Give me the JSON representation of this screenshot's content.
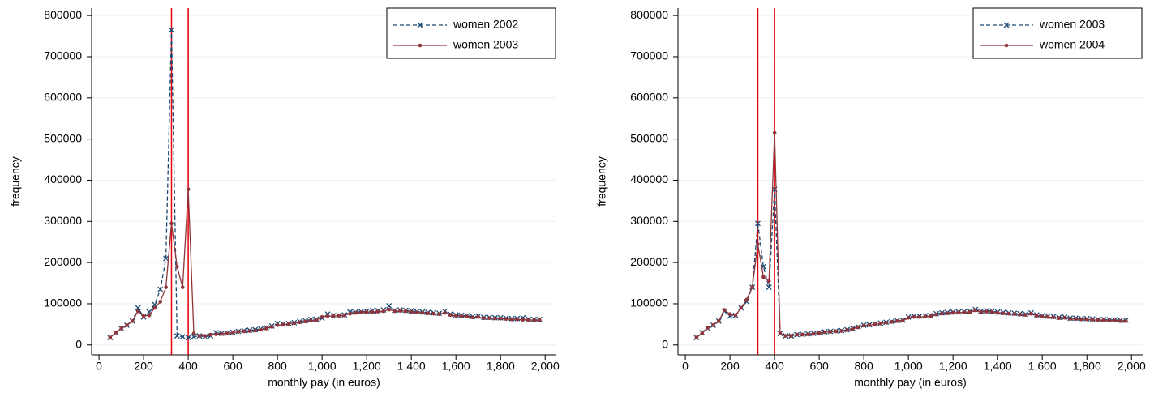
{
  "chart_data": [
    {
      "type": "line",
      "x": [
        50,
        75,
        100,
        125,
        150,
        175,
        200,
        225,
        250,
        275,
        300,
        325,
        350,
        375,
        400,
        425,
        450,
        475,
        500,
        525,
        550,
        575,
        600,
        625,
        650,
        675,
        700,
        725,
        750,
        775,
        800,
        825,
        850,
        875,
        900,
        925,
        950,
        975,
        1000,
        1025,
        1050,
        1075,
        1100,
        1125,
        1150,
        1175,
        1200,
        1225,
        1250,
        1275,
        1300,
        1325,
        1350,
        1375,
        1400,
        1425,
        1450,
        1475,
        1500,
        1525,
        1550,
        1575,
        1600,
        1625,
        1650,
        1675,
        1700,
        1725,
        1750,
        1775,
        1800,
        1825,
        1850,
        1875,
        1900,
        1925,
        1950,
        1975
      ],
      "series": [
        {
          "name": "women 2002",
          "color": "#1a476f",
          "style": "dashed",
          "marker": "x",
          "values": [
            18000,
            30000,
            40000,
            48000,
            58000,
            90000,
            68000,
            80000,
            98000,
            135000,
            210000,
            765000,
            22000,
            20000,
            18000,
            20000,
            22000,
            20000,
            22000,
            30000,
            28000,
            29000,
            31000,
            33000,
            35000,
            36000,
            37000,
            39000,
            42000,
            46000,
            52000,
            51000,
            52000,
            54000,
            57000,
            59000,
            62000,
            63000,
            65000,
            75000,
            71000,
            72000,
            73000,
            80000,
            80000,
            81000,
            82000,
            83000,
            83000,
            85000,
            95000,
            84000,
            85000,
            84000,
            83000,
            81000,
            80000,
            79000,
            78000,
            77000,
            82000,
            75000,
            73000,
            72000,
            71000,
            69000,
            70000,
            67000,
            67000,
            66000,
            66000,
            65000,
            64000,
            64000,
            66000,
            63000,
            62000,
            62000
          ]
        },
        {
          "name": "women 2003",
          "color": "#90353b",
          "style": "solid",
          "marker": "o",
          "values": [
            18000,
            30000,
            40000,
            48000,
            58000,
            82000,
            70000,
            72000,
            90000,
            105000,
            140000,
            295000,
            190000,
            140000,
            378000,
            28000,
            22000,
            22000,
            25000,
            26000,
            27000,
            28000,
            30000,
            32000,
            33000,
            34000,
            35000,
            37000,
            40000,
            44000,
            48000,
            49000,
            51000,
            53000,
            55000,
            57000,
            59000,
            60000,
            68000,
            70000,
            70000,
            71000,
            72000,
            76000,
            78000,
            79000,
            80000,
            80000,
            81000,
            82000,
            86000,
            82000,
            83000,
            82000,
            80000,
            79000,
            78000,
            77000,
            76000,
            75000,
            78000,
            73000,
            71000,
            70000,
            69000,
            67000,
            68000,
            65000,
            65000,
            64000,
            64000,
            63000,
            62000,
            62000,
            61000,
            61000,
            60000,
            60000
          ]
        }
      ],
      "vlines": [
        325,
        400
      ],
      "vline_color": "#e8000b",
      "xlim": [
        -33,
        2050
      ],
      "xticks": [
        0,
        200,
        400,
        600,
        800,
        {
          "value": 1000,
          "label": "1,000"
        },
        {
          "value": 1200,
          "label": "1,200"
        },
        {
          "value": 1400,
          "label": "1,400"
        },
        {
          "value": 1600,
          "label": "1,600"
        },
        {
          "value": 1800,
          "label": "1,800"
        },
        {
          "value": 2000,
          "label": "2,000"
        }
      ],
      "ylim": [
        -24000,
        818000
      ],
      "yticks": [
        0,
        100000,
        200000,
        300000,
        400000,
        500000,
        600000,
        700000,
        800000
      ],
      "xlabel": "monthly pay (in euros)",
      "ylabel": "frequency",
      "grid": true,
      "legend": "top-right"
    },
    {
      "type": "line",
      "x": [
        50,
        75,
        100,
        125,
        150,
        175,
        200,
        225,
        250,
        275,
        300,
        325,
        350,
        375,
        400,
        425,
        450,
        475,
        500,
        525,
        550,
        575,
        600,
        625,
        650,
        675,
        700,
        725,
        750,
        775,
        800,
        825,
        850,
        875,
        900,
        925,
        950,
        975,
        1000,
        1025,
        1050,
        1075,
        1100,
        1125,
        1150,
        1175,
        1200,
        1225,
        1250,
        1275,
        1300,
        1325,
        1350,
        1375,
        1400,
        1425,
        1450,
        1475,
        1500,
        1525,
        1550,
        1575,
        1600,
        1625,
        1650,
        1675,
        1700,
        1725,
        1750,
        1775,
        1800,
        1825,
        1850,
        1875,
        1900,
        1925,
        1950,
        1975
      ],
      "series": [
        {
          "name": "women 2003",
          "color": "#1a476f",
          "style": "dashed",
          "marker": "x",
          "values": [
            18000,
            30000,
            40000,
            48000,
            58000,
            82000,
            70000,
            72000,
            90000,
            105000,
            140000,
            295000,
            190000,
            140000,
            378000,
            28000,
            22000,
            22000,
            25000,
            26000,
            27000,
            28000,
            30000,
            32000,
            33000,
            34000,
            35000,
            37000,
            40000,
            44000,
            48000,
            49000,
            51000,
            53000,
            55000,
            57000,
            59000,
            60000,
            68000,
            70000,
            70000,
            71000,
            72000,
            76000,
            78000,
            79000,
            80000,
            80000,
            81000,
            82000,
            86000,
            82000,
            83000,
            82000,
            80000,
            79000,
            78000,
            77000,
            76000,
            75000,
            78000,
            73000,
            71000,
            70000,
            69000,
            67000,
            68000,
            65000,
            65000,
            64000,
            64000,
            63000,
            62000,
            62000,
            61000,
            61000,
            60000,
            60000
          ]
        },
        {
          "name": "women 2004",
          "color": "#90353b",
          "style": "solid",
          "marker": "o",
          "values": [
            18000,
            28000,
            42000,
            48000,
            58000,
            85000,
            75000,
            72000,
            90000,
            110000,
            140000,
            245000,
            165000,
            155000,
            515000,
            28000,
            22000,
            22000,
            25000,
            25000,
            26000,
            27000,
            29000,
            31000,
            32000,
            33000,
            34000,
            36000,
            39000,
            43000,
            47000,
            48000,
            50000,
            52000,
            54000,
            56000,
            58000,
            59000,
            66000,
            68000,
            68000,
            69000,
            70000,
            74000,
            76000,
            77000,
            78000,
            79000,
            79000,
            80000,
            84000,
            80000,
            81000,
            80000,
            78000,
            77000,
            76000,
            75000,
            74000,
            73000,
            76000,
            71000,
            69000,
            68000,
            67000,
            65000,
            66000,
            63000,
            63000,
            62000,
            62000,
            61000,
            60000,
            60000,
            59000,
            59000,
            58000,
            58000
          ]
        }
      ],
      "vlines": [
        325,
        400
      ],
      "vline_color": "#e8000b",
      "xlim": [
        -33,
        2050
      ],
      "xticks": [
        0,
        200,
        400,
        600,
        800,
        {
          "value": 1000,
          "label": "1,000"
        },
        {
          "value": 1200,
          "label": "1,200"
        },
        {
          "value": 1400,
          "label": "1,400"
        },
        {
          "value": 1600,
          "label": "1,600"
        },
        {
          "value": 1800,
          "label": "1,800"
        },
        {
          "value": 2000,
          "label": "2,000"
        }
      ],
      "ylim": [
        -24000,
        818000
      ],
      "yticks": [
        0,
        100000,
        200000,
        300000,
        400000,
        500000,
        600000,
        700000,
        800000
      ],
      "xlabel": "monthly pay (in euros)",
      "ylabel": "frequency",
      "grid": true,
      "legend": "top-right"
    }
  ]
}
